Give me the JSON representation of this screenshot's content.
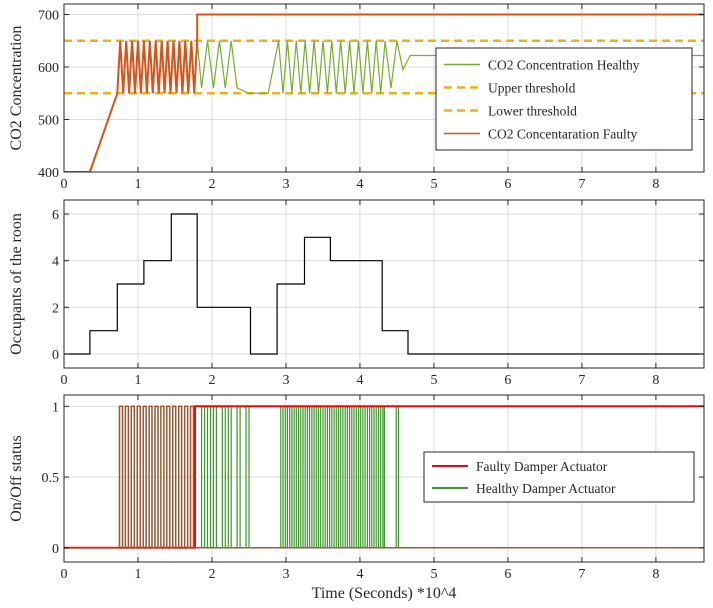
{
  "chart_data": [
    {
      "type": "line",
      "ylabel": "CO2 Concentration",
      "xlabel": "",
      "xlim": [
        0,
        8.65
      ],
      "ylim": [
        400,
        720
      ],
      "xticks": [
        "0",
        "1",
        "2",
        "3",
        "4",
        "5",
        "6",
        "7",
        "8"
      ],
      "yticks": [
        "400",
        "500",
        "600",
        "700"
      ],
      "legend_position": "right",
      "legend": [
        {
          "label": "CO2 Concentration Healthy",
          "color": "#77AC30",
          "style": "solid"
        },
        {
          "label": "Upper threshold",
          "color": "#EDB120",
          "style": "dashed"
        },
        {
          "label": "Lower threshold",
          "color": "#EDB120",
          "style": "dashed"
        },
        {
          "label": "CO2 Concentaration Faulty",
          "color": "#D95319",
          "style": "solid"
        }
      ],
      "series": [
        {
          "name": "Upper threshold",
          "color": "#EDB120",
          "dashed": true,
          "x": [
            0,
            8.65
          ],
          "y": [
            650,
            650
          ]
        },
        {
          "name": "Lower threshold",
          "color": "#EDB120",
          "dashed": true,
          "x": [
            0,
            8.65
          ],
          "y": [
            550,
            550
          ]
        },
        {
          "name": "CO2 Concentration Healthy",
          "color": "#77AC30",
          "x": [
            0,
            0.35,
            0.72,
            0.76,
            0.8,
            0.84,
            0.88,
            0.92,
            0.96,
            1.0,
            1.04,
            1.08,
            1.12,
            1.16,
            1.2,
            1.24,
            1.28,
            1.32,
            1.36,
            1.4,
            1.44,
            1.48,
            1.52,
            1.56,
            1.6,
            1.64,
            1.68,
            1.72,
            1.76,
            1.8,
            1.86,
            1.94,
            2.02,
            2.1,
            2.18,
            2.26,
            2.34,
            2.5,
            2.56,
            2.76,
            2.9,
            2.96,
            3.02,
            3.08,
            3.14,
            3.2,
            3.26,
            3.32,
            3.38,
            3.44,
            3.5,
            3.56,
            3.62,
            3.68,
            3.74,
            3.8,
            3.86,
            3.92,
            3.98,
            4.04,
            4.1,
            4.16,
            4.22,
            4.28,
            4.34,
            4.42,
            4.5,
            4.58,
            4.68,
            8.65
          ],
          "y": [
            400,
            400,
            550,
            650,
            550,
            650,
            550,
            650,
            550,
            650,
            550,
            650,
            550,
            650,
            550,
            650,
            550,
            650,
            550,
            650,
            550,
            650,
            550,
            650,
            550,
            650,
            550,
            650,
            550,
            650,
            560,
            650,
            560,
            650,
            560,
            650,
            560,
            550,
            550,
            550,
            650,
            550,
            650,
            550,
            650,
            550,
            650,
            550,
            650,
            550,
            650,
            550,
            650,
            550,
            650,
            550,
            650,
            550,
            650,
            550,
            650,
            550,
            650,
            550,
            650,
            560,
            650,
            595,
            622,
            622
          ]
        },
        {
          "name": "CO2 Concentaration Faulty",
          "color": "#D95319",
          "x": [
            0,
            0.35,
            0.72,
            0.76,
            0.8,
            0.84,
            0.88,
            0.92,
            0.96,
            1.0,
            1.04,
            1.08,
            1.12,
            1.16,
            1.2,
            1.24,
            1.28,
            1.32,
            1.36,
            1.4,
            1.44,
            1.48,
            1.52,
            1.56,
            1.6,
            1.64,
            1.68,
            1.72,
            1.76,
            1.8,
            1.8,
            8.65
          ],
          "y": [
            400,
            400,
            550,
            650,
            550,
            650,
            550,
            650,
            550,
            650,
            550,
            650,
            550,
            650,
            550,
            650,
            550,
            650,
            550,
            650,
            550,
            650,
            550,
            650,
            550,
            650,
            550,
            650,
            550,
            650,
            700,
            700
          ]
        }
      ]
    },
    {
      "type": "line",
      "ylabel": "Occupants of the roon",
      "xlabel": "",
      "xlim": [
        0,
        8.65
      ],
      "ylim": [
        -0.6,
        6.6
      ],
      "xticks": [
        "0",
        "1",
        "2",
        "3",
        "4",
        "5",
        "6",
        "7",
        "8"
      ],
      "yticks": [
        "0",
        "2",
        "4",
        "6"
      ],
      "series": [
        {
          "color": "#000000",
          "step": true,
          "x": [
            0,
            0.35,
            0.72,
            1.08,
            1.45,
            1.8,
            2.52,
            2.88,
            3.25,
            3.6,
            3.95,
            4.3,
            4.65,
            8.65
          ],
          "y": [
            0,
            1,
            3,
            4,
            6,
            2,
            0,
            3,
            5,
            4,
            4,
            1,
            0,
            0
          ]
        }
      ]
    },
    {
      "type": "line",
      "ylabel": "On/Off status",
      "xlabel": "Time (Seconds) *10^4",
      "xlim": [
        0,
        8.65
      ],
      "ylim": [
        -0.1,
        1.08
      ],
      "xticks": [
        "0",
        "1",
        "2",
        "3",
        "4",
        "5",
        "6",
        "7",
        "8"
      ],
      "yticks": [
        "0",
        "0.5",
        "1"
      ],
      "legend_position": "right",
      "legend": [
        {
          "label": "Faulty Damper Actuator",
          "color": "#FF0000",
          "style": "solid"
        },
        {
          "label": "Healthy Damper Actuator",
          "color": "#3A9A2A",
          "style": "solid"
        }
      ],
      "series": [
        {
          "name": "Healthy Damper Actuator",
          "color": "#3A9A2A",
          "pulses": [
            [
              0.75,
              0.79
            ],
            [
              0.83,
              0.87
            ],
            [
              0.91,
              0.95
            ],
            [
              0.99,
              1.03
            ],
            [
              1.07,
              1.11
            ],
            [
              1.15,
              1.19
            ],
            [
              1.23,
              1.27
            ],
            [
              1.31,
              1.35
            ],
            [
              1.39,
              1.43
            ],
            [
              1.47,
              1.51
            ],
            [
              1.55,
              1.59
            ],
            [
              1.63,
              1.67
            ],
            [
              1.71,
              1.75
            ],
            [
              1.86,
              1.9
            ],
            [
              1.94,
              1.98
            ],
            [
              2.02,
              2.06
            ],
            [
              2.14,
              2.18
            ],
            [
              2.22,
              2.26
            ],
            [
              2.34,
              2.38
            ],
            [
              2.46,
              2.5
            ],
            [
              2.93,
              2.96
            ],
            [
              2.99,
              3.02
            ],
            [
              3.05,
              3.08
            ],
            [
              3.11,
              3.14
            ],
            [
              3.17,
              3.2
            ],
            [
              3.23,
              3.26
            ],
            [
              3.29,
              3.32
            ],
            [
              3.35,
              3.38
            ],
            [
              3.41,
              3.44
            ],
            [
              3.47,
              3.5
            ],
            [
              3.53,
              3.56
            ],
            [
              3.59,
              3.62
            ],
            [
              3.65,
              3.68
            ],
            [
              3.71,
              3.74
            ],
            [
              3.77,
              3.8
            ],
            [
              3.83,
              3.86
            ],
            [
              3.89,
              3.92
            ],
            [
              3.95,
              3.98
            ],
            [
              4.01,
              4.04
            ],
            [
              4.07,
              4.1
            ],
            [
              4.13,
              4.16
            ],
            [
              4.19,
              4.22
            ],
            [
              4.25,
              4.28
            ],
            [
              4.31,
              4.33
            ],
            [
              4.49,
              4.52
            ]
          ]
        },
        {
          "name": "Faulty Damper Actuator",
          "color": "#FF0000",
          "x": [
            0,
            1.77,
            1.77,
            8.65
          ],
          "y": [
            0,
            0,
            1,
            1
          ]
        },
        {
          "color": "#A0522D",
          "pulses": [
            [
              0.75,
              0.79
            ],
            [
              0.83,
              0.87
            ],
            [
              0.91,
              0.95
            ],
            [
              0.99,
              1.03
            ],
            [
              1.07,
              1.11
            ],
            [
              1.15,
              1.19
            ],
            [
              1.23,
              1.27
            ],
            [
              1.31,
              1.35
            ],
            [
              1.39,
              1.43
            ],
            [
              1.47,
              1.51
            ],
            [
              1.55,
              1.59
            ],
            [
              1.63,
              1.67
            ],
            [
              1.71,
              1.75
            ]
          ]
        }
      ]
    }
  ]
}
